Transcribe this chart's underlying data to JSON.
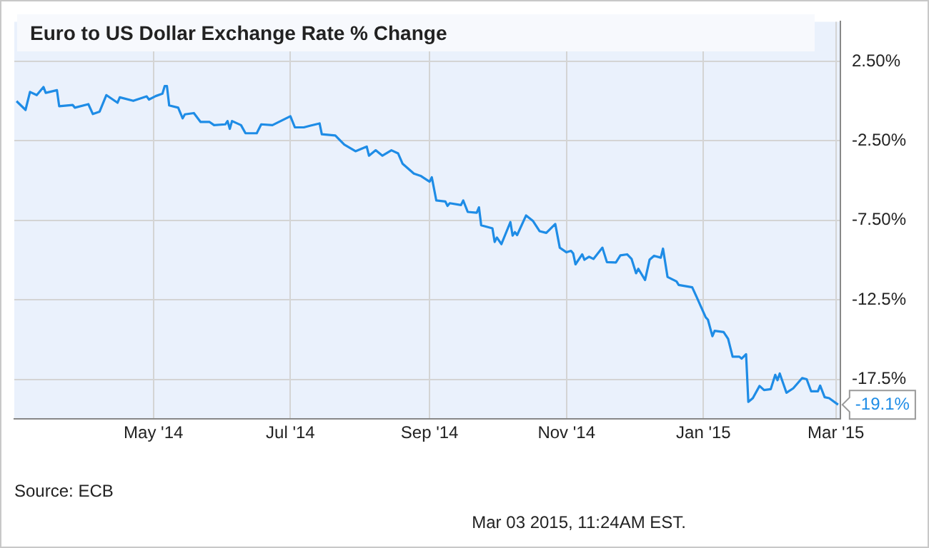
{
  "chart_data": {
    "type": "line",
    "title": "Euro to US Dollar Exchange Rate % Change",
    "annotations": [
      "Source: ECB",
      "Mar 03 2015, 11:24AM EST."
    ],
    "xlim": [
      "2014-02-28",
      "2015-03-03"
    ],
    "xticks": [
      {
        "value": "2014-05-01",
        "label": "May '14"
      },
      {
        "value": "2014-07-01",
        "label": "Jul '14"
      },
      {
        "value": "2014-09-01",
        "label": "Sep '14"
      },
      {
        "value": "2014-11-01",
        "label": "Nov '14"
      },
      {
        "value": "2015-01-01",
        "label": "Jan '15"
      },
      {
        "value": "2015-03-01",
        "label": "Mar '15"
      }
    ],
    "ylim": [
      -20,
      5
    ],
    "yticks": [
      {
        "value": 2.5,
        "label": "2.50%"
      },
      {
        "value": -2.5,
        "label": "-2.50%"
      },
      {
        "value": -7.5,
        "label": "-7.50%"
      },
      {
        "value": -12.5,
        "label": "-12.5%"
      },
      {
        "value": -17.5,
        "label": "-17.5%"
      }
    ],
    "grid": true,
    "marker": "none",
    "line_style": "solid",
    "series": [
      {
        "color": "#1e8ce6",
        "x": [
          "2014-03-01",
          "2014-03-05",
          "2014-03-07",
          "2014-03-10",
          "2014-03-13",
          "2014-03-14",
          "2014-03-19",
          "2014-03-20",
          "2014-03-26",
          "2014-03-27",
          "2014-04-02",
          "2014-04-04",
          "2014-04-07",
          "2014-04-10",
          "2014-04-15",
          "2014-04-16",
          "2014-04-22",
          "2014-04-28",
          "2014-04-29",
          "2014-05-02",
          "2014-05-05",
          "2014-05-06",
          "2014-05-07",
          "2014-05-08",
          "2014-05-12",
          "2014-05-14",
          "2014-05-15",
          "2014-05-19",
          "2014-05-22",
          "2014-05-26",
          "2014-05-28",
          "2014-06-02",
          "2014-06-03",
          "2014-06-04",
          "2014-06-05",
          "2014-06-09",
          "2014-06-11",
          "2014-06-16",
          "2014-06-18",
          "2014-06-23",
          "2014-06-27",
          "2014-07-01",
          "2014-07-03",
          "2014-07-07",
          "2014-07-10",
          "2014-07-14",
          "2014-07-15",
          "2014-07-21",
          "2014-07-25",
          "2014-07-30",
          "2014-08-04",
          "2014-08-05",
          "2014-08-08",
          "2014-08-11",
          "2014-08-15",
          "2014-08-18",
          "2014-08-20",
          "2014-08-25",
          "2014-08-28",
          "2014-09-01",
          "2014-09-02",
          "2014-09-04",
          "2014-09-08",
          "2014-09-09",
          "2014-09-10",
          "2014-09-15",
          "2014-09-16",
          "2014-09-18",
          "2014-09-22",
          "2014-09-23",
          "2014-09-24",
          "2014-09-29",
          "2014-09-30",
          "2014-10-01",
          "2014-10-03",
          "2014-10-07",
          "2014-10-08",
          "2014-10-09",
          "2014-10-10",
          "2014-10-14",
          "2014-10-17",
          "2014-10-20",
          "2014-10-23",
          "2014-10-27",
          "2014-10-29",
          "2014-11-01",
          "2014-11-03",
          "2014-11-04",
          "2014-11-05",
          "2014-11-08",
          "2014-11-09",
          "2014-11-11",
          "2014-11-13",
          "2014-11-17",
          "2014-11-19",
          "2014-11-23",
          "2014-11-25",
          "2014-11-28",
          "2014-11-30",
          "2014-12-02",
          "2014-12-03",
          "2014-12-06",
          "2014-12-08",
          "2014-12-10",
          "2014-12-13",
          "2014-12-14",
          "2014-12-16",
          "2014-12-20",
          "2014-12-21",
          "2014-12-27",
          "2014-12-29",
          "2015-01-02",
          "2015-01-03",
          "2015-01-05",
          "2015-01-06",
          "2015-01-10",
          "2015-01-12",
          "2015-01-14",
          "2015-01-17",
          "2015-01-18",
          "2015-01-20",
          "2015-01-21",
          "2015-01-23",
          "2015-01-26",
          "2015-01-28",
          "2015-01-31",
          "2015-02-02",
          "2015-02-03",
          "2015-02-04",
          "2015-02-07",
          "2015-02-10",
          "2015-02-14",
          "2015-02-16",
          "2015-02-18",
          "2015-02-21",
          "2015-02-22",
          "2015-02-24",
          "2015-02-26",
          "2015-03-02"
        ],
        "values": [
          0,
          -0.55,
          0.58,
          0.38,
          0.89,
          0.52,
          0.69,
          -0.32,
          -0.24,
          -0.41,
          -0.19,
          -0.81,
          -0.66,
          0.38,
          -0.1,
          0.24,
          0.02,
          0.3,
          0.1,
          0.32,
          0.47,
          0.95,
          0.95,
          -0.27,
          -0.41,
          -1.08,
          -0.83,
          -0.75,
          -1.31,
          -1.31,
          -1.51,
          -1.46,
          -1.25,
          -1.74,
          -1.25,
          -1.51,
          -2.02,
          -2.02,
          -1.46,
          -1.51,
          -1.23,
          -0.95,
          -1.65,
          -1.65,
          -1.54,
          -1.4,
          -2.08,
          -2.16,
          -2.73,
          -3.15,
          -2.86,
          -3.43,
          -3.09,
          -3.43,
          -3.09,
          -3.29,
          -3.94,
          -4.56,
          -4.7,
          -5.07,
          -4.79,
          -6.25,
          -6.31,
          -6.59,
          -6.42,
          -6.54,
          -6.25,
          -6.97,
          -7.02,
          -6.68,
          -7.81,
          -8.0,
          -8.86,
          -8.58,
          -9.0,
          -7.61,
          -8.46,
          -8.24,
          -8.43,
          -7.19,
          -7.53,
          -8.18,
          -8.29,
          -7.73,
          -9.22,
          -9.51,
          -9.42,
          -9.59,
          -10.27,
          -9.64,
          -9.98,
          -9.79,
          -9.93,
          -9.22,
          -10.13,
          -10.15,
          -9.7,
          -9.64,
          -9.93,
          -10.83,
          -10.55,
          -11.25,
          -9.98,
          -9.73,
          -9.85,
          -9.28,
          -11.06,
          -11.34,
          -11.57,
          -11.71,
          -12.33,
          -13.6,
          -13.75,
          -14.79,
          -14.45,
          -14.53,
          -14.96,
          -16.08,
          -16.08,
          -16.2,
          -15.92,
          -18.92,
          -18.69,
          -17.92,
          -18.18,
          -18.12,
          -17.22,
          -17.56,
          -17.14,
          -18.35,
          -18.07,
          -17.42,
          -17.5,
          -18.26,
          -18.26,
          -17.9,
          -18.63,
          -18.69,
          -19.1
        ],
        "value_labels": [
          null,
          null,
          null,
          null,
          null,
          null,
          null,
          null,
          null,
          null,
          null,
          null,
          null,
          null,
          null,
          null,
          null,
          null,
          null,
          null,
          null,
          null,
          null,
          null,
          null,
          null,
          null,
          null,
          null,
          null,
          null,
          null,
          null,
          null,
          null,
          null,
          null,
          null,
          null,
          null,
          null,
          null,
          null,
          null,
          null,
          null,
          null,
          null,
          null,
          null,
          null,
          null,
          null,
          null,
          null,
          null,
          null,
          null,
          null,
          null,
          null,
          null,
          null,
          null,
          null,
          null,
          null,
          null,
          null,
          null,
          null,
          null,
          null,
          null,
          null,
          null,
          null,
          null,
          null,
          null,
          null,
          null,
          null,
          null,
          null,
          null,
          null,
          null,
          null,
          null,
          null,
          null,
          null,
          null,
          null,
          null,
          null,
          null,
          null,
          null,
          null,
          null,
          null,
          null,
          null,
          null,
          null,
          null,
          null,
          null,
          null,
          null,
          null,
          null,
          null,
          null,
          null,
          null,
          null,
          null,
          null,
          null,
          null,
          null,
          null,
          null,
          null,
          null,
          null,
          null,
          null,
          null,
          null,
          null,
          null,
          null,
          null,
          null,
          "-19.1%"
        ]
      }
    ]
  }
}
